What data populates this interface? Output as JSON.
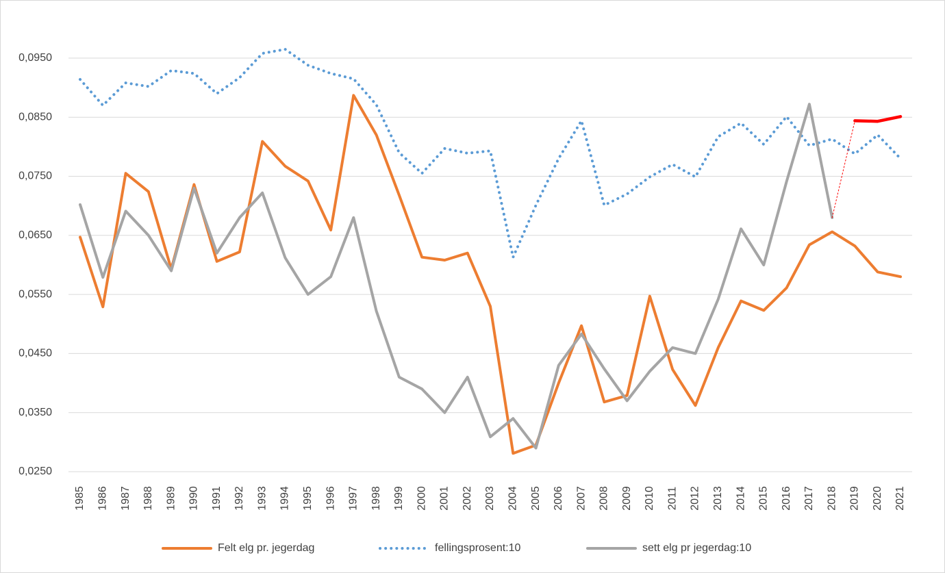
{
  "chart_data": {
    "type": "line",
    "categories": [
      "1985",
      "1986",
      "1987",
      "1988",
      "1989",
      "1990",
      "1991",
      "1992",
      "1993",
      "1994",
      "1995",
      "1996",
      "1997",
      "1998",
      "1999",
      "2000",
      "2001",
      "2002",
      "2003",
      "2004",
      "2005",
      "2006",
      "2007",
      "2008",
      "2009",
      "2010",
      "2011",
      "2012",
      "2013",
      "2014",
      "2015",
      "2016",
      "2017",
      "2018",
      "2019",
      "2020",
      "2021"
    ],
    "ylim": [
      0.025,
      0.1
    ],
    "yticks": [
      {
        "value": 0.025,
        "label": "0,0250"
      },
      {
        "value": 0.035,
        "label": "0,0350"
      },
      {
        "value": 0.045,
        "label": "0,0450"
      },
      {
        "value": 0.055,
        "label": "0,0550"
      },
      {
        "value": 0.065,
        "label": "0,0650"
      },
      {
        "value": 0.075,
        "label": "0,0750"
      },
      {
        "value": 0.085,
        "label": "0,0850"
      },
      {
        "value": 0.095,
        "label": "0,0950"
      }
    ],
    "grid": true,
    "legend": "bottom",
    "series": [
      {
        "name": "Felt elg pr. jegerdag",
        "color": "#ed7d31",
        "width": 4,
        "dash": "solid",
        "values": [
          0.0647,
          0.0529,
          0.0755,
          0.0724,
          0.0593,
          0.0736,
          0.0606,
          0.0622,
          0.0809,
          0.0767,
          0.0742,
          0.0659,
          0.0887,
          0.082,
          0.0718,
          0.0613,
          0.0608,
          0.062,
          0.053,
          0.0281,
          0.0295,
          0.04,
          0.0497,
          0.0368,
          0.0379,
          0.0547,
          0.0423,
          0.0362,
          0.046,
          0.0539,
          0.0523,
          0.0561,
          0.0634,
          0.0656,
          0.0632,
          0.0588,
          0.058
        ]
      },
      {
        "name": "fellingsprosent:10",
        "color": "#5b9bd5",
        "width": 4,
        "dash": "dotted",
        "values": [
          0.0914,
          0.087,
          0.0908,
          0.0902,
          0.0929,
          0.0924,
          0.089,
          0.0917,
          0.0958,
          0.0965,
          0.0938,
          0.0924,
          0.0915,
          0.0871,
          0.079,
          0.0755,
          0.0797,
          0.0789,
          0.0793,
          0.0613,
          0.0701,
          0.078,
          0.0844,
          0.0701,
          0.072,
          0.0749,
          0.077,
          0.0749,
          0.0817,
          0.084,
          0.0804,
          0.0851,
          0.0802,
          0.0813,
          0.0788,
          0.082,
          0.078
        ]
      },
      {
        "name": "sett elg pr jegerdag:10",
        "color": "#a5a5a5",
        "width": 4,
        "dash": "solid",
        "values": [
          0.0702,
          0.0579,
          0.0691,
          0.065,
          0.059,
          0.073,
          0.062,
          0.068,
          0.0722,
          0.0612,
          0.055,
          0.058,
          0.068,
          0.0522,
          0.041,
          0.039,
          0.035,
          0.041,
          0.0309,
          0.034,
          0.029,
          0.043,
          0.0483,
          0.0424,
          0.037,
          0.042,
          0.046,
          0.045,
          0.0542,
          0.0661,
          0.06,
          0.0741,
          0.0872,
          0.068,
          null,
          null,
          null
        ]
      },
      {
        "color": "#ff0000",
        "width": 1,
        "dash": "dotted",
        "values": [
          null,
          null,
          null,
          null,
          null,
          null,
          null,
          null,
          null,
          null,
          null,
          null,
          null,
          null,
          null,
          null,
          null,
          null,
          null,
          null,
          null,
          null,
          null,
          null,
          null,
          null,
          null,
          null,
          null,
          null,
          null,
          null,
          null,
          0.068,
          0.0844,
          null,
          null
        ]
      },
      {
        "color": "#ff0000",
        "width": 4.5,
        "dash": "solid",
        "values": [
          null,
          null,
          null,
          null,
          null,
          null,
          null,
          null,
          null,
          null,
          null,
          null,
          null,
          null,
          null,
          null,
          null,
          null,
          null,
          null,
          null,
          null,
          null,
          null,
          null,
          null,
          null,
          null,
          null,
          null,
          null,
          null,
          null,
          null,
          0.0844,
          0.0843,
          0.0851
        ]
      }
    ]
  }
}
